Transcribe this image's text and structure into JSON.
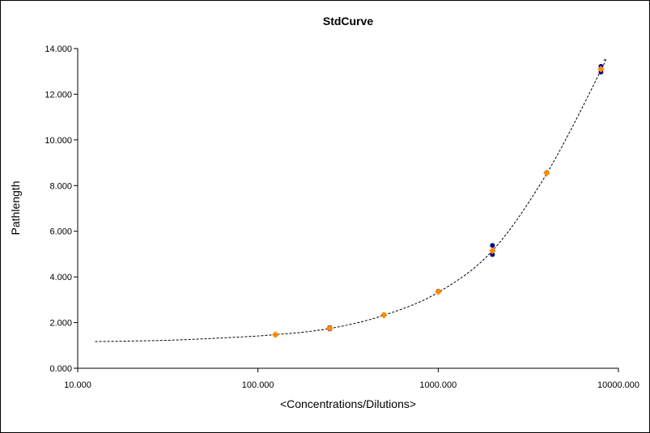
{
  "chart_data": {
    "type": "scatter",
    "title": "StdCurve",
    "xlabel": "<Concentrations/Dilutions>",
    "ylabel": "Pathlength",
    "x_scale": "log",
    "xlim": [
      10,
      10000
    ],
    "ylim": [
      0,
      14
    ],
    "x_ticks": [
      10,
      100,
      1000,
      10000
    ],
    "x_tick_labels": [
      "10.000",
      "100.000",
      "1000.000",
      "10000.000"
    ],
    "y_ticks": [
      0,
      2,
      4,
      6,
      8,
      10,
      12,
      14
    ],
    "y_tick_labels": [
      "0.000",
      "2.000",
      "4.000",
      "6.000",
      "8.000",
      "10.000",
      "12.000",
      "14.000"
    ],
    "grid": false,
    "legend": "none",
    "series": [
      {
        "color": "#00008B",
        "marker": "circle",
        "x": [
          125,
          250,
          250,
          500,
          1000,
          2000,
          2000,
          4000,
          8000,
          8000
        ],
        "y": [
          1.47,
          1.72,
          1.78,
          2.34,
          3.37,
          5.38,
          4.98,
          8.57,
          13.22,
          12.97
        ]
      },
      {
        "color": "#FF8C00",
        "marker": "diamond",
        "x": [
          125,
          250,
          500,
          1000,
          2000,
          4000,
          8000
        ],
        "y": [
          1.47,
          1.75,
          2.33,
          3.35,
          5.15,
          8.55,
          13.1
        ]
      }
    ],
    "fit_curve": {
      "style": "dashed",
      "color": "#000000",
      "x": [
        12.5,
        30,
        60,
        125,
        250,
        500,
        1000,
        2000,
        4000,
        8000,
        8300
      ],
      "y": [
        1.17,
        1.22,
        1.32,
        1.47,
        1.74,
        2.32,
        3.32,
        5.15,
        8.52,
        13.05,
        13.5
      ]
    }
  }
}
